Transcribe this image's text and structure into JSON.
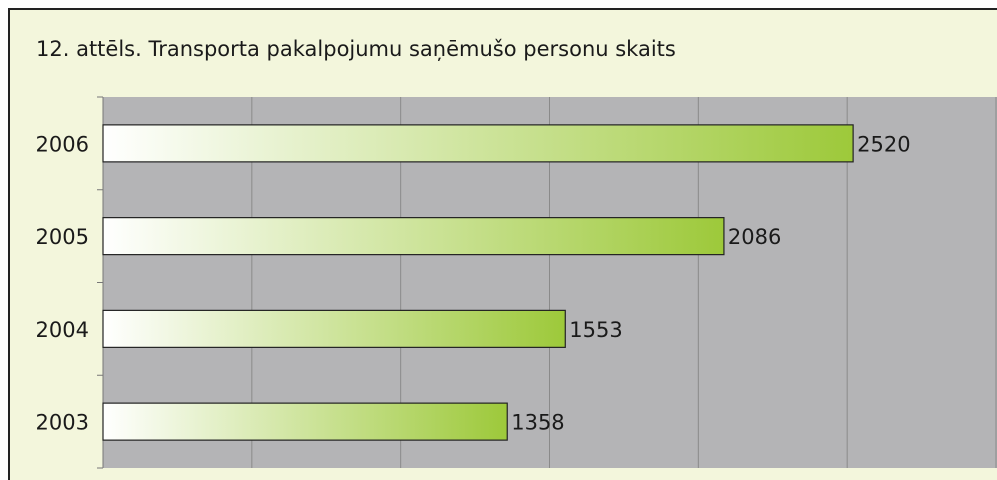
{
  "chart_data": {
    "type": "bar",
    "orientation": "horizontal",
    "title": "12. attēls. Transporta pakalpojumu saņēmušo personu skaits",
    "categories": [
      "2006",
      "2005",
      "2004",
      "2003"
    ],
    "values": [
      2520,
      2086,
      1553,
      1358
    ],
    "color": "#9dc93a",
    "xlim": [
      0,
      3000
    ],
    "xticks": [
      0,
      500,
      1000,
      1500,
      2000,
      2500,
      3000
    ],
    "grid": true
  }
}
